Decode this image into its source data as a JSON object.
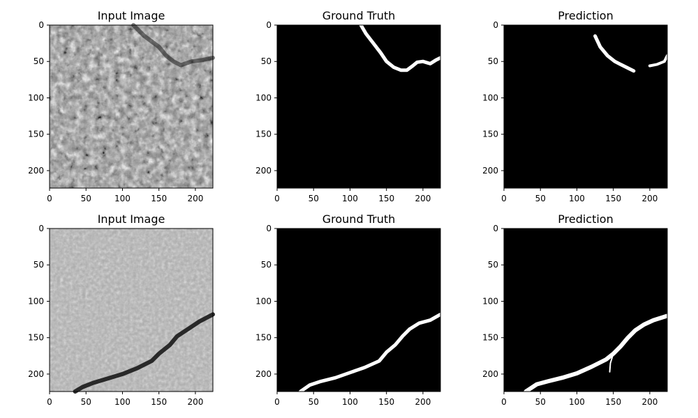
{
  "chart_data": [
    {
      "type": "image",
      "title": "Input Image",
      "kind": "input",
      "texture": "coarse-gravel",
      "xticks": [
        0,
        50,
        100,
        150,
        200
      ],
      "yticks": [
        0,
        50,
        100,
        150,
        200
      ],
      "xlim": [
        0,
        224
      ],
      "ylim": [
        224,
        0
      ],
      "crack": {
        "points": [
          [
            115,
            0
          ],
          [
            130,
            15
          ],
          [
            150,
            30
          ],
          [
            160,
            42
          ],
          [
            170,
            50
          ],
          [
            180,
            55
          ],
          [
            195,
            50
          ],
          [
            210,
            48
          ],
          [
            224,
            45
          ]
        ],
        "width": 6
      }
    },
    {
      "type": "image",
      "title": "Ground Truth",
      "kind": "mask",
      "xticks": [
        0,
        50,
        100,
        150,
        200
      ],
      "yticks": [
        0,
        50,
        100,
        150,
        200
      ],
      "xlim": [
        0,
        224
      ],
      "ylim": [
        224,
        0
      ],
      "segments": [
        {
          "points": [
            [
              115,
              0
            ],
            [
              122,
              12
            ],
            [
              132,
              25
            ],
            [
              142,
              38
            ],
            [
              150,
              50
            ],
            [
              160,
              58
            ],
            [
              170,
              62
            ],
            [
              178,
              62
            ],
            [
              186,
              56
            ],
            [
              192,
              51
            ],
            [
              200,
              50
            ],
            [
              210,
              53
            ],
            [
              218,
              48
            ],
            [
              224,
              45
            ]
          ],
          "width": 5
        }
      ]
    },
    {
      "type": "image",
      "title": "Prediction",
      "kind": "mask",
      "xticks": [
        0,
        50,
        100,
        150,
        200
      ],
      "yticks": [
        0,
        50,
        100,
        150,
        200
      ],
      "xlim": [
        0,
        224
      ],
      "ylim": [
        224,
        0
      ],
      "segments": [
        {
          "points": [
            [
              125,
              15
            ],
            [
              132,
              30
            ],
            [
              142,
              42
            ],
            [
              152,
              50
            ],
            [
              162,
              55
            ],
            [
              172,
              60
            ],
            [
              178,
              63
            ]
          ],
          "width": 5
        },
        {
          "points": [
            [
              200,
              56
            ],
            [
              210,
              54
            ],
            [
              220,
              50
            ],
            [
              224,
              42
            ]
          ],
          "width": 4
        }
      ]
    },
    {
      "type": "image",
      "title": "Input Image",
      "kind": "input",
      "texture": "fine-concrete",
      "xticks": [
        0,
        50,
        100,
        150,
        200
      ],
      "yticks": [
        0,
        50,
        100,
        150,
        200
      ],
      "xlim": [
        0,
        224
      ],
      "ylim": [
        224,
        0
      ],
      "crack": {
        "points": [
          [
            35,
            224
          ],
          [
            45,
            218
          ],
          [
            60,
            212
          ],
          [
            80,
            206
          ],
          [
            100,
            200
          ],
          [
            120,
            192
          ],
          [
            140,
            182
          ],
          [
            150,
            172
          ],
          [
            165,
            160
          ],
          [
            175,
            148
          ],
          [
            190,
            138
          ],
          [
            205,
            128
          ],
          [
            224,
            118
          ]
        ],
        "width": 6
      }
    },
    {
      "type": "image",
      "title": "Ground Truth",
      "kind": "mask",
      "xticks": [
        0,
        50,
        100,
        150,
        200
      ],
      "yticks": [
        0,
        50,
        100,
        150,
        200
      ],
      "xlim": [
        0,
        224
      ],
      "ylim": [
        224,
        0
      ],
      "segments": [
        {
          "points": [
            [
              32,
              224
            ],
            [
              45,
              215
            ],
            [
              60,
              210
            ],
            [
              80,
              205
            ],
            [
              100,
              198
            ],
            [
              120,
              191
            ],
            [
              140,
              182
            ],
            [
              150,
              170
            ],
            [
              162,
              160
            ],
            [
              172,
              148
            ],
            [
              182,
              138
            ],
            [
              195,
              130
            ],
            [
              210,
              126
            ],
            [
              224,
              118
            ]
          ],
          "width": 5
        }
      ]
    },
    {
      "type": "image",
      "title": "Prediction",
      "kind": "mask",
      "xticks": [
        0,
        50,
        100,
        150,
        200
      ],
      "yticks": [
        0,
        50,
        100,
        150,
        200
      ],
      "xlim": [
        0,
        224
      ],
      "ylim": [
        224,
        0
      ],
      "segments": [
        {
          "points": [
            [
              30,
              224
            ],
            [
              45,
              214
            ],
            [
              60,
              210
            ],
            [
              80,
              205
            ],
            [
              100,
              199
            ],
            [
              120,
              190
            ],
            [
              140,
              180
            ],
            [
              150,
              172
            ],
            [
              160,
              162
            ],
            [
              170,
              150
            ],
            [
              180,
              140
            ],
            [
              192,
              132
            ],
            [
              205,
              126
            ],
            [
              224,
              120
            ]
          ],
          "width": 6
        },
        {
          "points": [
            [
              150,
              172
            ],
            [
              146,
              185
            ],
            [
              145,
              197
            ]
          ],
          "width": 2
        }
      ]
    }
  ]
}
